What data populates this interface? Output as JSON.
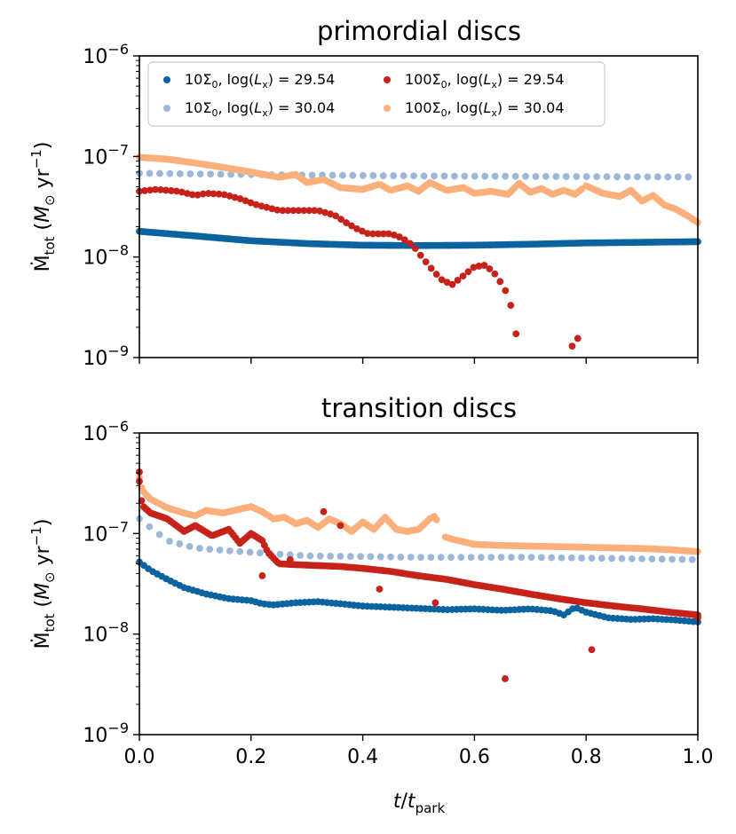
{
  "chart_data": [
    {
      "type": "scatter",
      "title": "primordial discs",
      "ylabel": "Ṁ_tot (M⊙ yr⁻¹)",
      "ylabel_parts": [
        "Ṁ",
        "tot",
        " (",
        "M",
        "⊙",
        " yr",
        "−1",
        ")"
      ],
      "yscale": "log",
      "ylim": [
        1e-09,
        1e-06
      ],
      "xlim": [
        0,
        1
      ],
      "ytick_labels": [
        {
          "base": "10",
          "exp": "−9"
        },
        {
          "base": "10",
          "exp": "−8"
        },
        {
          "base": "10",
          "exp": "−7"
        },
        {
          "base": "10",
          "exp": "−6"
        }
      ],
      "legend": {
        "placement": "top",
        "entries": [
          {
            "label": "10Σ₀, log(Lₓ) = 29.54",
            "parts": [
              "10Σ",
              "0",
              ", log(",
              "L",
              "x",
              ") = 29.54"
            ],
            "color": "#0b63a0"
          },
          {
            "label": "100Σ₀, log(Lₓ) = 29.54",
            "parts": [
              "100Σ",
              "0",
              ", log(",
              "L",
              "x",
              ") = 29.54"
            ],
            "color": "#c7221a"
          },
          {
            "label": "10Σ₀, log(Lₓ) = 30.04",
            "parts": [
              "10Σ",
              "0",
              ", log(",
              "L",
              "x",
              ") = 30.04"
            ],
            "color": "#9bb8d8"
          },
          {
            "label": "100Σ₀, log(Lₓ) = 30.04",
            "parts": [
              "100Σ",
              "0",
              ", log(",
              "L",
              "x",
              ") = 30.04"
            ],
            "color": "#fbb07c"
          }
        ]
      },
      "series": [
        {
          "name": "10Σ0, log(Lx)=29.54",
          "color": "#0b63a0",
          "step": 0.004,
          "points": [
            [
              0,
              1.8e-08
            ],
            [
              0.1,
              1.62e-08
            ],
            [
              0.2,
              1.45e-08
            ],
            [
              0.3,
              1.36e-08
            ],
            [
              0.4,
              1.31e-08
            ],
            [
              0.5,
              1.3e-08
            ],
            [
              0.6,
              1.31e-08
            ],
            [
              0.7,
              1.34e-08
            ],
            [
              0.8,
              1.38e-08
            ],
            [
              0.9,
              1.4e-08
            ],
            [
              1.0,
              1.42e-08
            ]
          ]
        },
        {
          "name": "100Σ0, log(Lx)=29.54",
          "color": "#c7221a",
          "step": 0.0095,
          "points": [
            [
              0,
              4.5e-08
            ],
            [
              0.03,
              4.7e-08
            ],
            [
              0.07,
              4.5e-08
            ],
            [
              0.1,
              4.1e-08
            ],
            [
              0.12,
              4.3e-08
            ],
            [
              0.15,
              4.2e-08
            ],
            [
              0.18,
              3.8e-08
            ],
            [
              0.21,
              3.3e-08
            ],
            [
              0.25,
              2.9e-08
            ],
            [
              0.28,
              2.9e-08
            ],
            [
              0.32,
              2.9e-08
            ],
            [
              0.35,
              2.6e-08
            ],
            [
              0.37,
              2.2e-08
            ],
            [
              0.39,
              1.9e-08
            ],
            [
              0.41,
              1.7e-08
            ],
            [
              0.43,
              1.7e-08
            ],
            [
              0.45,
              1.7e-08
            ],
            [
              0.47,
              1.55e-08
            ],
            [
              0.49,
              1.3e-08
            ],
            [
              0.5,
              1.1e-08
            ],
            [
              0.52,
              8e-09
            ],
            [
              0.54,
              6e-09
            ],
            [
              0.56,
              5.3e-09
            ],
            [
              0.58,
              6.5e-09
            ],
            [
              0.6,
              8e-09
            ],
            [
              0.62,
              8.3e-09
            ],
            [
              0.64,
              6.5e-09
            ],
            [
              0.66,
              4.2e-09
            ],
            [
              0.67,
              2.6e-09
            ],
            [
              0.678,
              1.25e-09
            ]
          ],
          "extra": [
            [
              0.775,
              1.3e-09
            ],
            [
              0.785,
              1.55e-09
            ]
          ]
        },
        {
          "name": "10Σ0, log(Lx)=30.04",
          "color": "#9bb8d8",
          "step": 0.0182,
          "points": [
            [
              0,
              6.8e-08
            ],
            [
              0.2,
              6.6e-08
            ],
            [
              0.5,
              6.4e-08
            ],
            [
              0.8,
              6.3e-08
            ],
            [
              1.0,
              6.25e-08
            ]
          ]
        },
        {
          "name": "100Σ0, log(Lx)=30.04",
          "color": "#fbb07c",
          "step": 0.004,
          "points": [
            [
              0,
              9.8e-08
            ],
            [
              0.05,
              9.4e-08
            ],
            [
              0.1,
              8.6e-08
            ],
            [
              0.15,
              7.8e-08
            ],
            [
              0.2,
              7e-08
            ],
            [
              0.25,
              6.2e-08
            ],
            [
              0.28,
              6.6e-08
            ],
            [
              0.3,
              5.5e-08
            ],
            [
              0.33,
              5.9e-08
            ],
            [
              0.36,
              4.9e-08
            ],
            [
              0.4,
              4.7e-08
            ],
            [
              0.43,
              5.3e-08
            ],
            [
              0.45,
              4.6e-08
            ],
            [
              0.48,
              5.1e-08
            ],
            [
              0.5,
              4.5e-08
            ],
            [
              0.52,
              5.5e-08
            ],
            [
              0.55,
              4.6e-08
            ],
            [
              0.58,
              4.9e-08
            ],
            [
              0.6,
              4.3e-08
            ],
            [
              0.63,
              4.5e-08
            ],
            [
              0.66,
              4.2e-08
            ],
            [
              0.68,
              5.4e-08
            ],
            [
              0.7,
              4.4e-08
            ],
            [
              0.72,
              4.8e-08
            ],
            [
              0.74,
              4.2e-08
            ],
            [
              0.76,
              4.6e-08
            ],
            [
              0.78,
              4.2e-08
            ],
            [
              0.8,
              5.1e-08
            ],
            [
              0.83,
              4.3e-08
            ],
            [
              0.86,
              4e-08
            ],
            [
              0.88,
              4.6e-08
            ],
            [
              0.9,
              3.6e-08
            ],
            [
              0.92,
              4.1e-08
            ],
            [
              0.94,
              3.3e-08
            ],
            [
              0.96,
              3e-08
            ],
            [
              0.98,
              2.6e-08
            ],
            [
              1.0,
              2.2e-08
            ]
          ],
          "gaps": [
            [
              0.795,
              0.8
            ]
          ]
        }
      ]
    },
    {
      "type": "scatter",
      "title": "transition discs",
      "xlabel": "t/t_park",
      "xlabel_parts": [
        "t",
        "/",
        "t",
        "park"
      ],
      "ylabel": "Ṁ_tot (M⊙ yr⁻¹)",
      "ylabel_parts": [
        "Ṁ",
        "tot",
        " (",
        "M",
        "⊙",
        " yr",
        "−1",
        ")"
      ],
      "yscale": "log",
      "ylim": [
        1e-09,
        1e-06
      ],
      "xlim": [
        0,
        1
      ],
      "xticks": [
        0.0,
        0.2,
        0.4,
        0.6,
        0.8,
        1.0
      ],
      "xtick_labels": [
        "0.0",
        "0.2",
        "0.4",
        "0.6",
        "0.8",
        "1.0"
      ],
      "ytick_labels": [
        {
          "base": "10",
          "exp": "−9"
        },
        {
          "base": "10",
          "exp": "−8"
        },
        {
          "base": "10",
          "exp": "−7"
        },
        {
          "base": "10",
          "exp": "−6"
        }
      ],
      "series": [
        {
          "name": "10Σ0, log(Lx)=29.54",
          "color": "#0b63a0",
          "step": 0.008,
          "points": [
            [
              0,
              5.2e-08
            ],
            [
              0.02,
              4.3e-08
            ],
            [
              0.05,
              3.5e-08
            ],
            [
              0.08,
              2.9e-08
            ],
            [
              0.12,
              2.5e-08
            ],
            [
              0.16,
              2.25e-08
            ],
            [
              0.2,
              2.15e-08
            ],
            [
              0.22,
              2e-08
            ],
            [
              0.24,
              1.95e-08
            ],
            [
              0.28,
              2.05e-08
            ],
            [
              0.32,
              2.1e-08
            ],
            [
              0.36,
              2e-08
            ],
            [
              0.4,
              1.9e-08
            ],
            [
              0.45,
              1.85e-08
            ],
            [
              0.5,
              1.8e-08
            ],
            [
              0.55,
              1.75e-08
            ],
            [
              0.6,
              1.78e-08
            ],
            [
              0.65,
              1.72e-08
            ],
            [
              0.7,
              1.78e-08
            ],
            [
              0.74,
              1.7e-08
            ],
            [
              0.76,
              1.55e-08
            ],
            [
              0.78,
              1.85e-08
            ],
            [
              0.8,
              1.65e-08
            ],
            [
              0.84,
              1.45e-08
            ],
            [
              0.88,
              1.4e-08
            ],
            [
              0.92,
              1.42e-08
            ],
            [
              0.96,
              1.38e-08
            ],
            [
              1.0,
              1.32e-08
            ]
          ]
        },
        {
          "name": "100Σ0, log(Lx)=29.54",
          "color": "#c7221a",
          "step": 0.004,
          "points": [
            [
              0,
              3.3e-07
            ],
            [
              0.005,
              1.9e-07
            ],
            [
              0.02,
              1.6e-07
            ],
            [
              0.05,
              1.4e-07
            ],
            [
              0.08,
              1.05e-07
            ],
            [
              0.1,
              1.2e-07
            ],
            [
              0.13,
              9.5e-08
            ],
            [
              0.16,
              1.1e-07
            ],
            [
              0.18,
              8e-08
            ],
            [
              0.2,
              1e-07
            ],
            [
              0.22,
              8.5e-08
            ],
            [
              0.23,
              6.5e-08
            ],
            [
              0.25,
              5e-08
            ],
            [
              0.28,
              4.9e-08
            ],
            [
              0.32,
              4.8e-08
            ],
            [
              0.36,
              4.7e-08
            ],
            [
              0.4,
              4.5e-08
            ],
            [
              0.45,
              4.2e-08
            ],
            [
              0.5,
              3.8e-08
            ],
            [
              0.55,
              3.5e-08
            ],
            [
              0.6,
              3.1e-08
            ],
            [
              0.65,
              2.8e-08
            ],
            [
              0.7,
              2.5e-08
            ],
            [
              0.75,
              2.25e-08
            ],
            [
              0.8,
              2.05e-08
            ],
            [
              0.85,
              1.9e-08
            ],
            [
              0.9,
              1.78e-08
            ],
            [
              0.95,
              1.65e-08
            ],
            [
              1.0,
              1.55e-08
            ]
          ],
          "extra": [
            [
              0.0,
              4.1e-07
            ],
            [
              0.22,
              3.8e-08
            ],
            [
              0.27,
              5.5e-08
            ],
            [
              0.33,
              1.65e-07
            ],
            [
              0.36,
              1.2e-07
            ],
            [
              0.43,
              2.8e-08
            ],
            [
              0.53,
              2.05e-08
            ],
            [
              0.655,
              3.6e-09
            ],
            [
              0.81,
              7e-09
            ],
            [
              1.0,
              1.45e-08
            ]
          ]
        },
        {
          "name": "10Σ0, log(Lx)=30.04",
          "color": "#9bb8d8",
          "step": 0.018,
          "points": [
            [
              0,
              1.4e-07
            ],
            [
              0.05,
              8.5e-08
            ],
            [
              0.1,
              7.2e-08
            ],
            [
              0.15,
              6.8e-08
            ],
            [
              0.2,
              6.5e-08
            ],
            [
              0.3,
              6e-08
            ],
            [
              0.4,
              5.9e-08
            ],
            [
              0.5,
              5.8e-08
            ],
            [
              0.6,
              5.8e-08
            ],
            [
              0.7,
              5.8e-08
            ],
            [
              0.8,
              5.7e-08
            ],
            [
              0.9,
              5.6e-08
            ],
            [
              1.0,
              5.5e-08
            ]
          ]
        },
        {
          "name": "100Σ0, log(Lx)=30.04",
          "color": "#fbb07c",
          "step": 0.004,
          "points": [
            [
              0,
              3.6e-07
            ],
            [
              0.005,
              2.7e-07
            ],
            [
              0.02,
              2.2e-07
            ],
            [
              0.05,
              1.8e-07
            ],
            [
              0.08,
              1.6e-07
            ],
            [
              0.1,
              1.5e-07
            ],
            [
              0.12,
              1.7e-07
            ],
            [
              0.15,
              1.6e-07
            ],
            [
              0.18,
              1.75e-07
            ],
            [
              0.2,
              1.85e-07
            ],
            [
              0.22,
              1.65e-07
            ],
            [
              0.24,
              1.4e-07
            ],
            [
              0.26,
              1.45e-07
            ],
            [
              0.28,
              1.25e-07
            ],
            [
              0.3,
              1.35e-07
            ],
            [
              0.32,
              1.15e-07
            ],
            [
              0.34,
              1.4e-07
            ],
            [
              0.36,
              1.25e-07
            ],
            [
              0.38,
              1.05e-07
            ],
            [
              0.4,
              1.3e-07
            ],
            [
              0.42,
              1.1e-07
            ],
            [
              0.44,
              1.45e-07
            ],
            [
              0.46,
              1.1e-07
            ],
            [
              0.48,
              1.05e-07
            ],
            [
              0.5,
              1.1e-07
            ],
            [
              0.52,
              1.4e-07
            ],
            [
              0.53,
              1.5e-07
            ],
            [
              0.54,
              9.5e-08
            ],
            [
              0.56,
              8.8e-08
            ],
            [
              0.6,
              7.8e-08
            ],
            [
              0.65,
              7.6e-08
            ],
            [
              0.7,
              7.5e-08
            ],
            [
              0.75,
              7.4e-08
            ],
            [
              0.8,
              7.3e-08
            ],
            [
              0.85,
              7.2e-08
            ],
            [
              0.9,
              7.1e-08
            ],
            [
              0.95,
              6.9e-08
            ],
            [
              1.0,
              6.6e-08
            ]
          ],
          "gaps": [
            [
              0.535,
              0.545
            ]
          ]
        }
      ]
    }
  ]
}
